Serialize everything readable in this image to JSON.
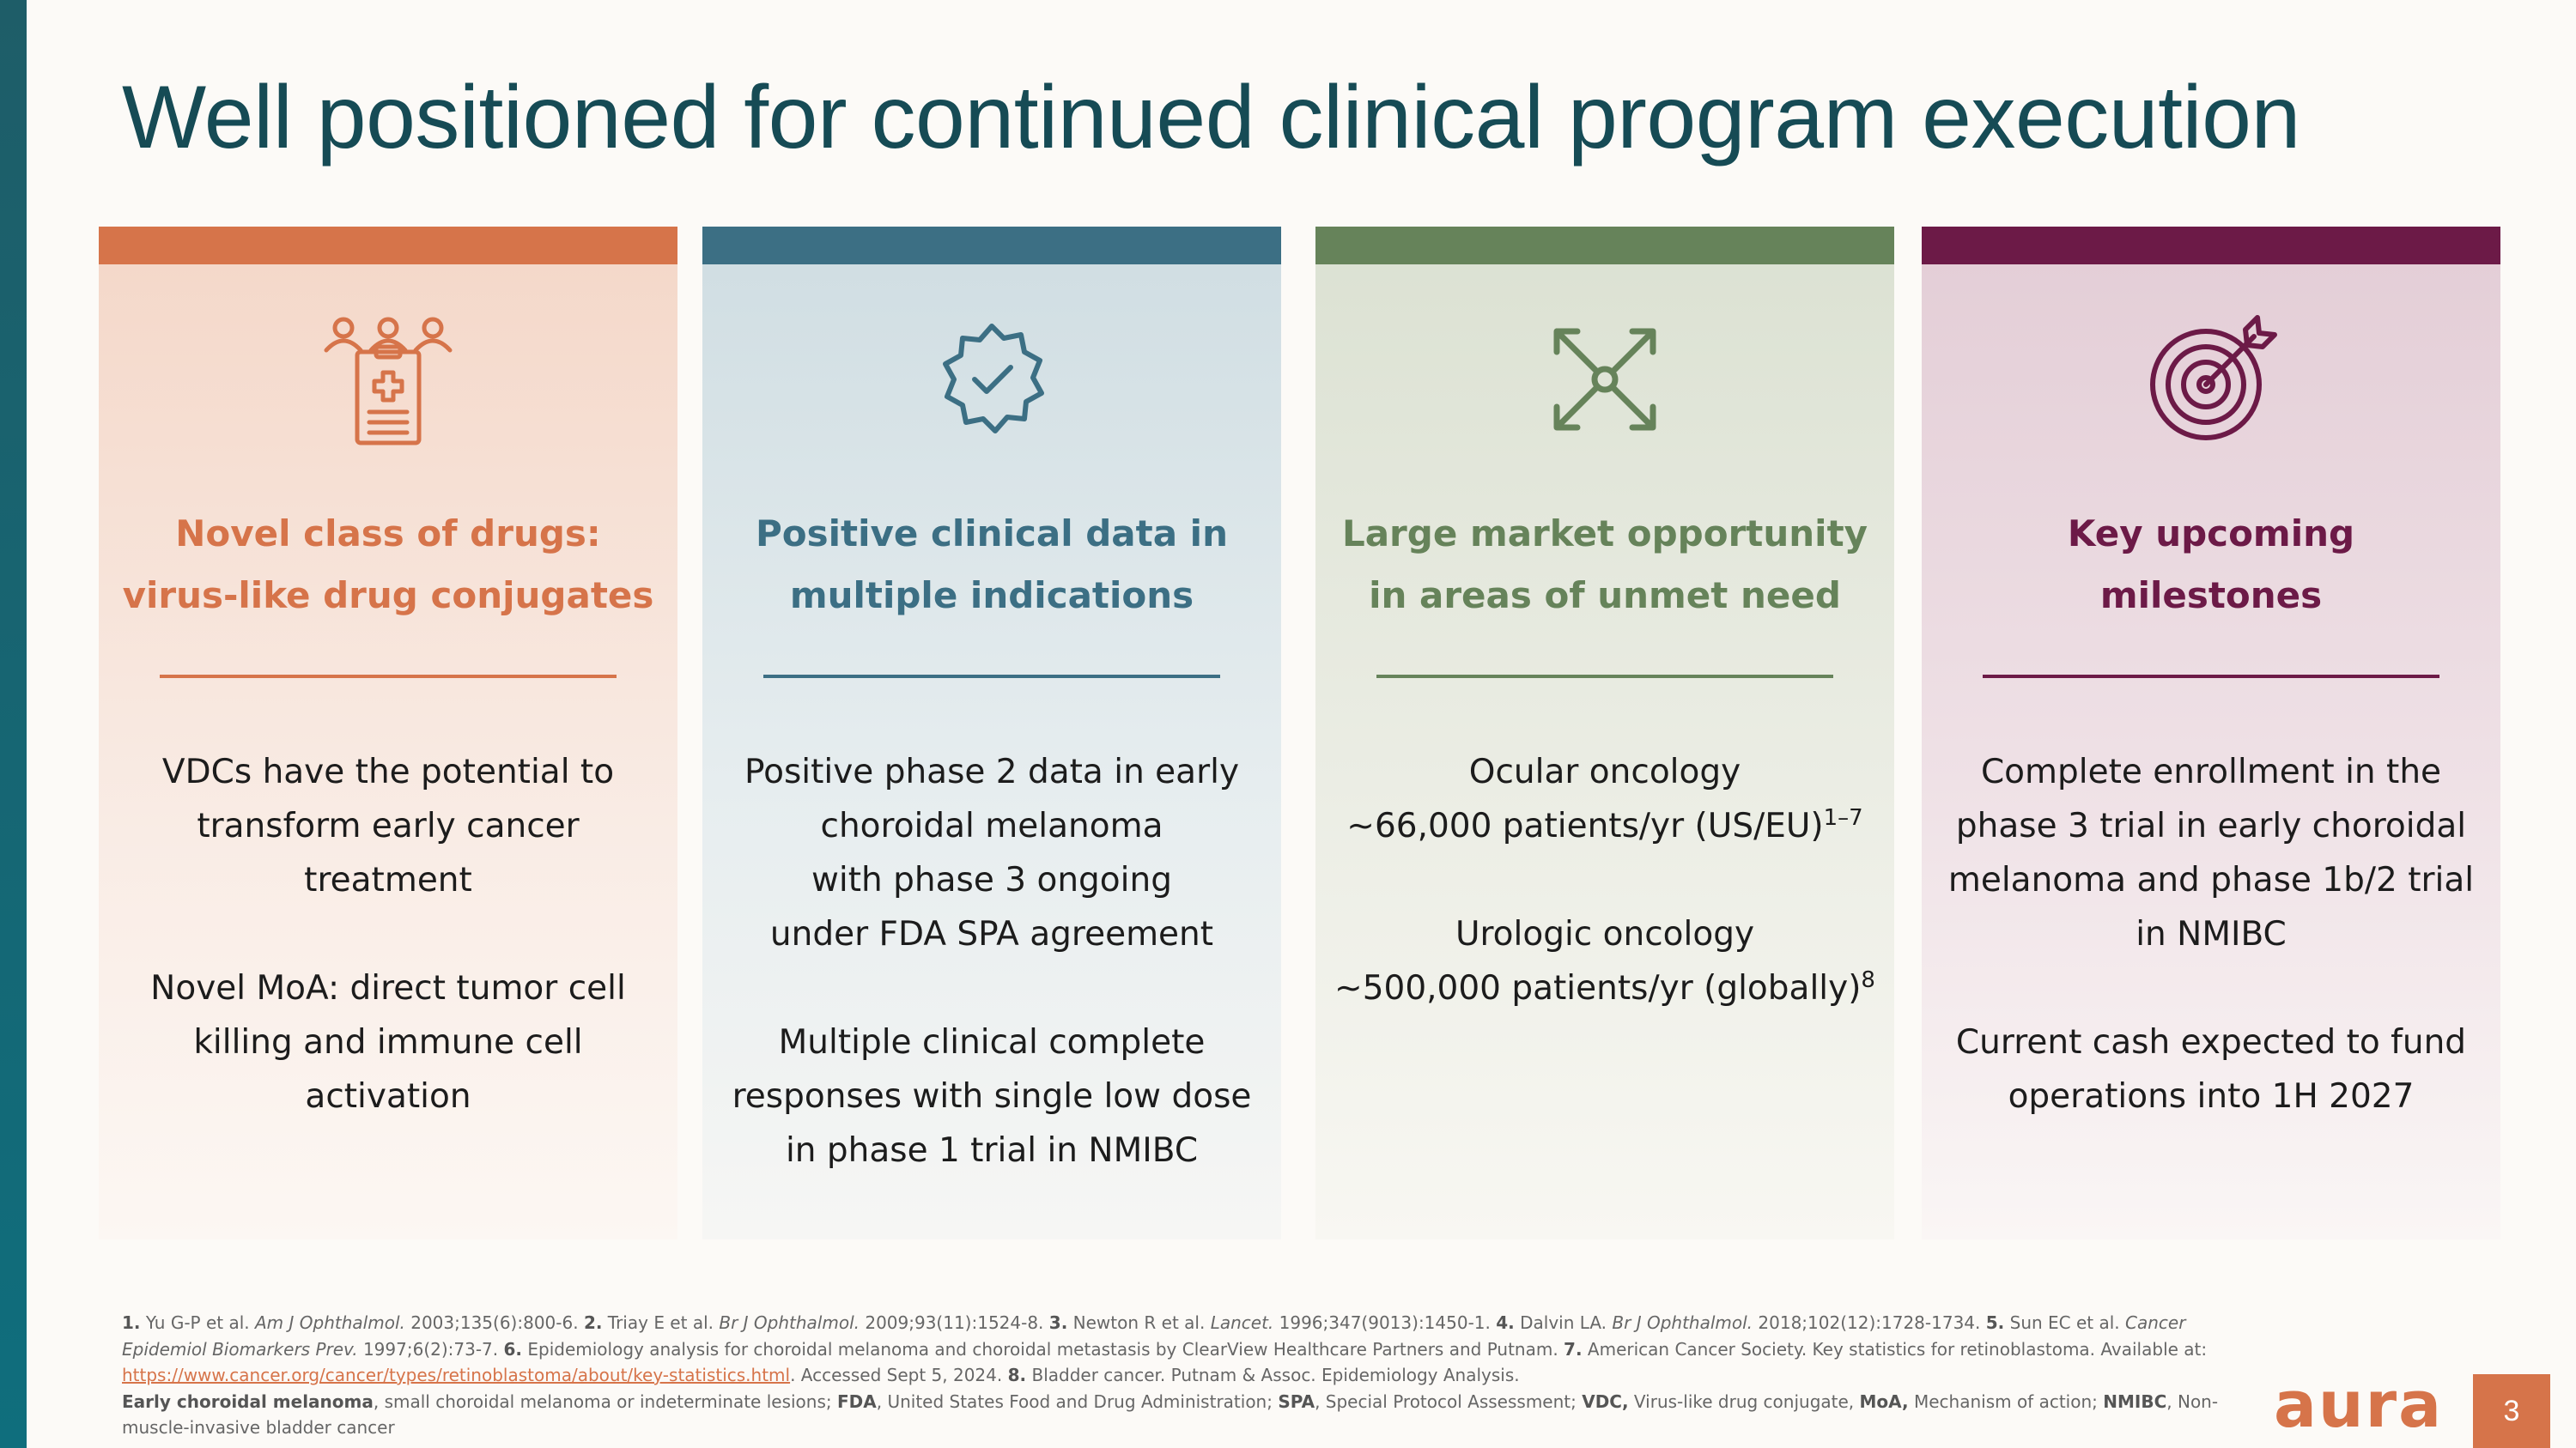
{
  "title": "Well positioned for continued clinical program execution",
  "colors": {
    "orange": "#d6744a",
    "blue": "#3c6f84",
    "green": "#66835a",
    "plum": "#6c1a47",
    "title": "#164b55"
  },
  "cards": [
    {
      "icon": "clinical-trial-clipboard-icon",
      "heading": [
        "Novel class of drugs:",
        "virus-like drug conjugates"
      ],
      "body": [
        [
          "VDCs have the potential to",
          "transform early cancer",
          "treatment"
        ],
        [
          "Novel MoA: direct tumor cell",
          "killing and immune cell",
          "activation"
        ]
      ]
    },
    {
      "icon": "verified-badge-icon",
      "heading": [
        "Positive clinical data in",
        "multiple indications"
      ],
      "body": [
        [
          "Positive phase 2 data in early",
          "choroidal melanoma",
          "with phase 3 ongoing",
          "under FDA SPA agreement"
        ],
        [
          "Multiple clinical complete",
          "responses with single low dose",
          "in phase 1 trial in NMIBC"
        ]
      ]
    },
    {
      "icon": "expand-arrows-icon",
      "heading": [
        "Large market opportunity",
        "in areas of unmet need"
      ],
      "body": [
        [
          "Ocular oncology",
          "~66,000 patients/yr (US/EU)"
        ],
        [
          "Urologic oncology",
          "~500,000 patients/yr (globally)"
        ]
      ],
      "superscripts": [
        "1–7",
        "8"
      ]
    },
    {
      "icon": "target-icon",
      "heading": [
        "Key upcoming",
        "milestones"
      ],
      "body": [
        [
          "Complete enrollment in the",
          "phase 3 trial in early choroidal",
          "melanoma and phase 1b/2 trial",
          "in NMIBC"
        ],
        [
          "Current cash expected to fund",
          "operations into 1H 2027"
        ]
      ]
    }
  ],
  "footnotes": {
    "line1": [
      {
        "n": "1.",
        "text": " Yu G-P et al. ",
        "journal": "Am J Ophthalmol.",
        "rest": " 2003;135(6):800-6. "
      },
      {
        "n": "2.",
        "text": " Triay E et al. ",
        "journal": "Br J Ophthalmol.",
        "rest": " 2009;93(11):1524-8. "
      },
      {
        "n": "3.",
        "text": " Newton R et al. ",
        "journal": "Lancet.",
        "rest": " 1996;347(9013):1450-1. "
      },
      {
        "n": "4.",
        "text": " Dalvin LA. ",
        "journal": "Br J Ophthalmol.",
        "rest": " 2018;102(12):1728-1734. "
      },
      {
        "n": "5.",
        "text": " Sun EC et al. ",
        "journal": "Cancer Epidemiol Biomarkers Prev.",
        "rest": " 1997;6(2):73-7. "
      },
      {
        "n": "6.",
        "text": " Epidemiology analysis for choroidal melanoma and choroidal metastasis by ClearView Healthcare Partners and Putnam.",
        "journal": "",
        "rest": ""
      },
      {
        "n": "7.",
        "text": " American Cancer Society. Key statistics for retinoblastoma. Available at: ",
        "journal": "",
        "rest": ""
      }
    ],
    "link": "https://www.cancer.org/cancer/types/retinoblastoma/about/key-statistics.html",
    "after_link": ". Accessed Sept 5, 2024. ",
    "n8": "8.",
    "ref8": " Bladder cancer. Putnam & Assoc. Epidemiology Analysis.",
    "abbreviations": [
      {
        "term": "Early choroidal melanoma",
        "def": ", small choroidal melanoma or indeterminate lesions; "
      },
      {
        "term": "FDA",
        "def": ", United States Food and Drug Administration; "
      },
      {
        "term": "SPA",
        "def": ", Special Protocol Assessment; "
      },
      {
        "term": "VDC,",
        "def": "  Virus-like drug conjugate, "
      },
      {
        "term": "MoA,",
        "def": " Mechanism of action; "
      },
      {
        "term": "NMIBC",
        "def": ", Non-muscle-invasive bladder cancer"
      }
    ]
  },
  "logo": "aura",
  "page_number": "3"
}
